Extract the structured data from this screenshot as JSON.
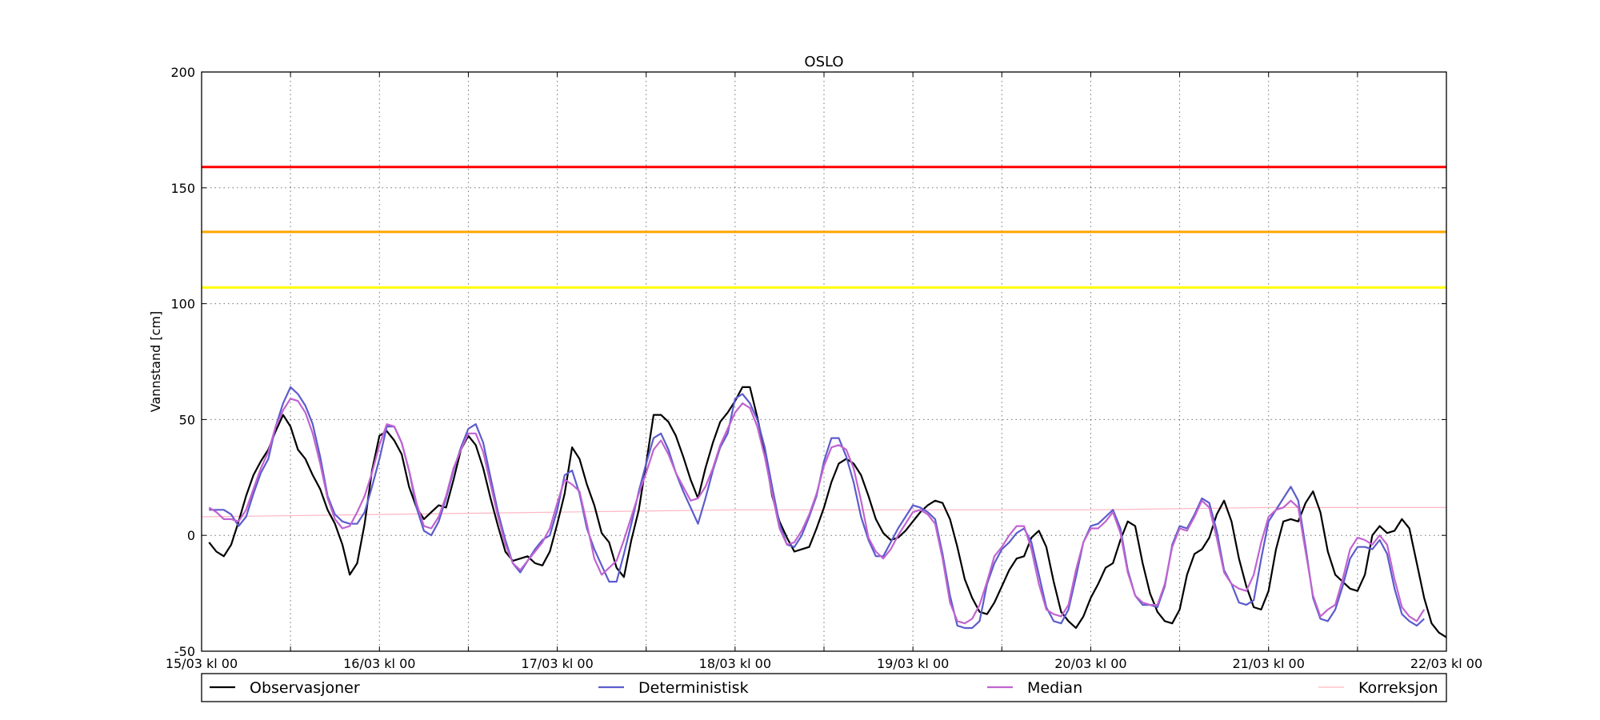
{
  "chart_data": {
    "type": "line",
    "title": "OSLO",
    "xlabel": "",
    "ylabel": "Vannstand [cm]",
    "ylim": [
      -50,
      200
    ],
    "yticks": [
      -50,
      0,
      50,
      100,
      150,
      200
    ],
    "x_start": "15/03 kl 00",
    "x_end": "22/03 kl 00",
    "xlim_hours": [
      0,
      168
    ],
    "x_tick_labels": [
      "15/03 kl 00",
      "16/03 kl 00",
      "17/03 kl 00",
      "18/03 kl 00",
      "19/03 kl 00",
      "20/03 kl 00",
      "21/03 kl 00",
      "22/03 kl 00"
    ],
    "grid": true,
    "thresholds": [
      {
        "value": 159,
        "color": "#ff0000"
      },
      {
        "value": 131,
        "color": "#ffa500"
      },
      {
        "value": 107,
        "color": "#ffff00"
      }
    ],
    "legend_position": "bottom",
    "series": [
      {
        "name": "Observasjoner",
        "color": "#000000",
        "x_step_hours": 1,
        "values_every_2h": [
          -3,
          -7,
          -9,
          -4,
          6,
          17,
          26,
          32,
          37,
          45,
          52,
          47,
          37,
          33,
          26,
          20,
          11,
          5,
          -4,
          -17,
          -12,
          5,
          28,
          43,
          45,
          41,
          35,
          21,
          12,
          7,
          10,
          13,
          12,
          24,
          37,
          43,
          39,
          29,
          16,
          4,
          -7,
          -11,
          -10,
          -9,
          -12,
          -13,
          -7,
          5,
          18,
          38,
          33,
          22,
          13,
          1,
          -3,
          -14,
          -18,
          -2,
          11,
          31,
          52,
          52,
          49,
          43,
          34,
          24,
          16,
          29,
          40,
          49,
          53,
          58,
          64,
          64,
          51,
          36,
          17,
          6,
          -1,
          -7,
          -6,
          -5,
          3,
          12,
          23,
          31,
          33,
          31,
          26,
          17,
          7,
          1,
          -2,
          -1,
          2,
          6,
          10,
          13,
          15,
          14,
          7,
          -5,
          -19,
          -27,
          -33,
          -34,
          -29,
          -22,
          -15,
          -10,
          -9,
          -1,
          2,
          -5,
          -20,
          -33,
          -37,
          -40,
          -35,
          -27,
          -21,
          -14,
          -12,
          -2,
          6,
          4,
          -12,
          -25,
          -33,
          -37,
          -38,
          -32,
          -17,
          -8,
          -6,
          -1,
          9,
          15,
          6,
          -10,
          -22,
          -31,
          -32,
          -24,
          -6,
          6,
          7,
          6,
          14,
          19,
          10,
          -7,
          -17,
          -20,
          -23,
          -24,
          -17,
          0,
          4,
          1,
          2,
          7,
          3,
          -12,
          -27,
          -38,
          -42,
          -44
        ]
      },
      {
        "name": "Deterministisk",
        "color": "#5c5ccd",
        "values_every_2h": [
          11,
          11,
          11,
          9,
          4,
          8,
          18,
          27,
          33,
          47,
          57,
          64,
          61,
          56,
          48,
          34,
          17,
          9,
          6,
          5,
          5,
          10,
          21,
          33,
          47,
          47,
          40,
          28,
          12,
          2,
          0,
          6,
          16,
          28,
          38,
          46,
          48,
          40,
          25,
          10,
          -2,
          -12,
          -16,
          -11,
          -6,
          -2,
          0,
          11,
          26,
          28,
          18,
          3,
          -6,
          -13,
          -20,
          -20,
          -8,
          5,
          19,
          31,
          42,
          44,
          37,
          27,
          19,
          12,
          5,
          16,
          28,
          38,
          44,
          59,
          61,
          57,
          50,
          38,
          21,
          5,
          -4,
          -5,
          0,
          8,
          17,
          32,
          42,
          42,
          34,
          23,
          8,
          -2,
          -9,
          -9,
          -3,
          3,
          8,
          13,
          12,
          10,
          7,
          -8,
          -26,
          -39,
          -40,
          -40,
          -37,
          -21,
          -12,
          -6,
          -3,
          1,
          3,
          -3,
          -17,
          -31,
          -37,
          -38,
          -32,
          -18,
          -3,
          4,
          5,
          8,
          11,
          3,
          -15,
          -26,
          -30,
          -30,
          -31,
          -22,
          -4,
          4,
          3,
          9,
          16,
          14,
          2,
          -15,
          -21,
          -29,
          -30,
          -28,
          -10,
          6,
          11,
          16,
          21,
          15,
          -5,
          -27,
          -36,
          -37,
          -32,
          -22,
          -10,
          -5,
          -5,
          -6,
          -2,
          -8,
          -23,
          -34,
          -37,
          -39,
          -36
        ]
      },
      {
        "name": "Median",
        "color": "#c064d0",
        "values_every_2h": [
          12,
          10,
          7,
          7,
          6,
          11,
          20,
          29,
          36,
          47,
          54,
          59,
          58,
          53,
          44,
          31,
          16,
          7,
          3,
          4,
          10,
          17,
          27,
          39,
          48,
          47,
          40,
          28,
          14,
          4,
          3,
          8,
          17,
          29,
          37,
          44,
          44,
          36,
          22,
          8,
          -4,
          -12,
          -15,
          -11,
          -7,
          -3,
          3,
          14,
          24,
          22,
          19,
          5,
          -10,
          -17,
          -14,
          -11,
          -2,
          8,
          18,
          27,
          37,
          41,
          35,
          27,
          21,
          15,
          16,
          21,
          29,
          39,
          46,
          53,
          57,
          55,
          47,
          34,
          18,
          3,
          -4,
          -3,
          2,
          9,
          18,
          30,
          38,
          39,
          37,
          29,
          15,
          -1,
          -7,
          -10,
          -6,
          0,
          5,
          10,
          11,
          9,
          5,
          -10,
          -29,
          -37,
          -38,
          -36,
          -30,
          -20,
          -9,
          -5,
          0,
          4,
          4,
          -6,
          -21,
          -32,
          -34,
          -35,
          -30,
          -15,
          -3,
          3,
          3,
          6,
          10,
          1,
          -16,
          -26,
          -29,
          -30,
          -30,
          -21,
          -5,
          3,
          2,
          8,
          15,
          12,
          -1,
          -16,
          -21,
          -23,
          -24,
          -17,
          -3,
          8,
          11,
          12,
          15,
          12,
          -7,
          -26,
          -35,
          -32,
          -30,
          -19,
          -6,
          -1,
          -2,
          -4,
          0,
          -4,
          -19,
          -31,
          -35,
          -37,
          -32
        ]
      },
      {
        "name": "Korreksjon",
        "color": "#ffb6c1",
        "x_hours": [
          0,
          24,
          48,
          72,
          96,
          120,
          144,
          168
        ],
        "values": [
          8,
          9,
          10,
          11,
          11,
          11,
          12,
          12
        ]
      }
    ]
  }
}
